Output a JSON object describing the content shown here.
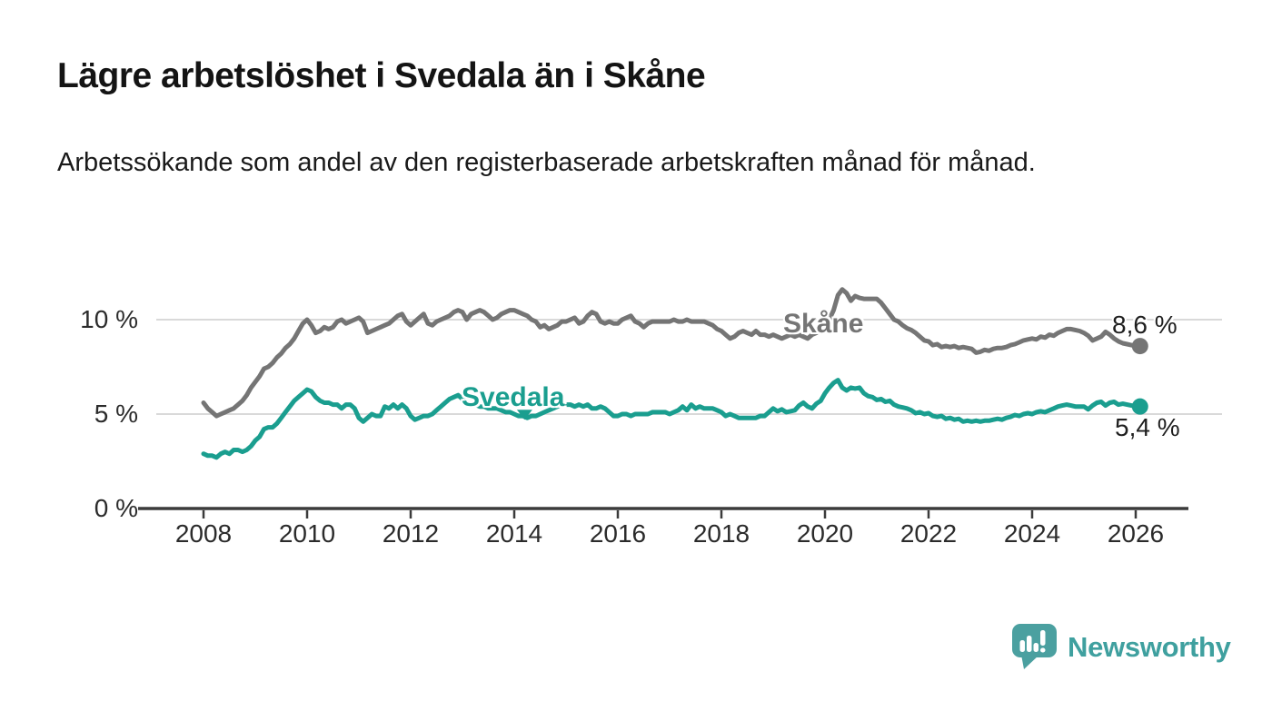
{
  "page": {
    "title": "Lägre arbetslöshet i Svedala än i Skåne",
    "subtitle": "Arbetssökande som andel av den registerbaserade arbetskraften månad för månad.",
    "background_color": "#FFFFFF"
  },
  "branding": {
    "label": "Newsworthy",
    "logo_icon": "speech-bubble-bar-chart",
    "logo_color": "#4BA0A0",
    "text_color": "#3FA09F"
  },
  "axis_style": {
    "grid_color": "#D9D9D9",
    "axis_color": "#3B3B3B",
    "tick_label_color": "#2B2B2B"
  },
  "chart_data": {
    "type": "line",
    "title": "Lägre arbetslöshet i Svedala än i Skåne",
    "xlabel": "",
    "ylabel": "",
    "x_unit": "month",
    "x_start": "2008-01",
    "x_end": "2026-02",
    "grid": "horizontal",
    "legend_position": "inline-labels",
    "ylim": [
      0,
      12.3
    ],
    "x_tick_years": [
      2008,
      2010,
      2012,
      2014,
      2016,
      2018,
      2020,
      2022,
      2024,
      2026
    ],
    "x_tick_labels": [
      "2008",
      "2010",
      "2012",
      "2014",
      "2016",
      "2018",
      "2020",
      "2022",
      "2024",
      "2026"
    ],
    "y_ticks": [
      {
        "value": 0,
        "label": "0 %"
      },
      {
        "value": 5,
        "label": "5 %"
      },
      {
        "value": 10,
        "label": "10 %"
      }
    ],
    "series": [
      {
        "name": "Skåne",
        "color": "#757575",
        "end_label": "8,6 %",
        "end_value": 8.6,
        "values": [
          5.6,
          5.3,
          5.1,
          4.9,
          5.0,
          5.1,
          5.2,
          5.3,
          5.5,
          5.7,
          6.0,
          6.4,
          6.7,
          7.0,
          7.4,
          7.5,
          7.7,
          8.0,
          8.2,
          8.5,
          8.7,
          9.0,
          9.4,
          9.8,
          10.0,
          9.7,
          9.3,
          9.4,
          9.6,
          9.5,
          9.6,
          9.9,
          10.0,
          9.8,
          9.9,
          10.0,
          10.1,
          9.9,
          9.3,
          9.4,
          9.5,
          9.6,
          9.7,
          9.8,
          10.0,
          10.2,
          10.3,
          9.9,
          9.7,
          9.9,
          10.1,
          10.3,
          9.8,
          9.7,
          9.9,
          10.0,
          10.1,
          10.2,
          10.4,
          10.5,
          10.4,
          10.0,
          10.3,
          10.4,
          10.5,
          10.4,
          10.2,
          10.0,
          10.1,
          10.3,
          10.4,
          10.5,
          10.5,
          10.4,
          10.3,
          10.2,
          10.0,
          9.9,
          9.6,
          9.7,
          9.5,
          9.6,
          9.7,
          9.9,
          9.9,
          10.0,
          10.1,
          9.8,
          9.9,
          10.2,
          10.4,
          10.3,
          9.9,
          9.8,
          9.9,
          9.8,
          9.8,
          10.0,
          10.1,
          10.2,
          9.9,
          9.8,
          9.6,
          9.8,
          9.9,
          9.9,
          9.9,
          9.9,
          9.9,
          10.0,
          9.9,
          9.9,
          10.0,
          9.9,
          9.9,
          9.9,
          9.9,
          9.8,
          9.7,
          9.5,
          9.4,
          9.2,
          9.0,
          9.1,
          9.3,
          9.4,
          9.3,
          9.2,
          9.4,
          9.2,
          9.2,
          9.1,
          9.2,
          9.1,
          9.0,
          9.1,
          9.2,
          9.1,
          9.2,
          9.1,
          9.0,
          9.2,
          9.3,
          9.5,
          9.7,
          10.0,
          10.5,
          11.3,
          11.6,
          11.4,
          11.0,
          11.25,
          11.15,
          11.1,
          11.1,
          11.1,
          11.1,
          10.9,
          10.6,
          10.3,
          10.0,
          9.9,
          9.7,
          9.55,
          9.45,
          9.3,
          9.1,
          8.9,
          8.85,
          8.65,
          8.7,
          8.55,
          8.6,
          8.55,
          8.6,
          8.5,
          8.55,
          8.5,
          8.45,
          8.25,
          8.3,
          8.4,
          8.35,
          8.45,
          8.5,
          8.5,
          8.55,
          8.65,
          8.7,
          8.8,
          8.9,
          8.95,
          9.0,
          8.95,
          9.1,
          9.05,
          9.2,
          9.15,
          9.3,
          9.4,
          9.5,
          9.5,
          9.45,
          9.4,
          9.3,
          9.15,
          8.9,
          9.0,
          9.1,
          9.35,
          9.2,
          9.0,
          8.85,
          8.75,
          8.7,
          8.65,
          8.6,
          8.6
        ]
      },
      {
        "name": "Svedala",
        "color": "#1A9E8F",
        "end_label": "5,4 %",
        "end_value": 5.4,
        "values": [
          2.9,
          2.8,
          2.8,
          2.7,
          2.9,
          3.0,
          2.9,
          3.1,
          3.1,
          3.0,
          3.1,
          3.3,
          3.6,
          3.8,
          4.2,
          4.3,
          4.3,
          4.5,
          4.8,
          5.1,
          5.4,
          5.7,
          5.9,
          6.1,
          6.3,
          6.2,
          5.9,
          5.7,
          5.6,
          5.6,
          5.5,
          5.5,
          5.3,
          5.5,
          5.5,
          5.3,
          4.8,
          4.6,
          4.8,
          5.0,
          4.9,
          4.9,
          5.4,
          5.3,
          5.5,
          5.3,
          5.5,
          5.3,
          4.9,
          4.7,
          4.8,
          4.9,
          4.9,
          5.0,
          5.2,
          5.4,
          5.6,
          5.8,
          5.9,
          6.0,
          5.8,
          5.6,
          5.5,
          5.5,
          5.4,
          5.4,
          5.3,
          5.3,
          5.3,
          5.2,
          5.1,
          5.1,
          5.0,
          4.9,
          4.9,
          4.8,
          4.9,
          4.9,
          5.0,
          5.1,
          5.2,
          5.3,
          5.4,
          5.5,
          5.5,
          5.5,
          5.4,
          5.5,
          5.4,
          5.5,
          5.3,
          5.3,
          5.4,
          5.3,
          5.1,
          4.9,
          4.9,
          5.0,
          5.0,
          4.9,
          5.0,
          5.0,
          5.0,
          5.0,
          5.1,
          5.1,
          5.1,
          5.1,
          5.0,
          5.1,
          5.2,
          5.4,
          5.2,
          5.5,
          5.3,
          5.4,
          5.3,
          5.3,
          5.3,
          5.2,
          5.1,
          4.9,
          5.0,
          4.9,
          4.8,
          4.8,
          4.8,
          4.8,
          4.8,
          4.9,
          4.9,
          5.1,
          5.3,
          5.15,
          5.25,
          5.1,
          5.15,
          5.2,
          5.45,
          5.6,
          5.4,
          5.3,
          5.55,
          5.7,
          6.1,
          6.4,
          6.65,
          6.8,
          6.4,
          6.25,
          6.4,
          6.35,
          6.4,
          6.1,
          5.95,
          5.9,
          5.75,
          5.8,
          5.65,
          5.7,
          5.5,
          5.4,
          5.35,
          5.3,
          5.2,
          5.05,
          5.1,
          5.0,
          5.05,
          4.9,
          4.85,
          4.9,
          4.75,
          4.8,
          4.7,
          4.75,
          4.6,
          4.65,
          4.6,
          4.65,
          4.6,
          4.65,
          4.65,
          4.7,
          4.75,
          4.7,
          4.8,
          4.85,
          4.95,
          4.9,
          5.0,
          5.05,
          5.0,
          5.1,
          5.15,
          5.1,
          5.2,
          5.3,
          5.4,
          5.45,
          5.5,
          5.45,
          5.4,
          5.4,
          5.4,
          5.25,
          5.45,
          5.6,
          5.65,
          5.45,
          5.6,
          5.65,
          5.5,
          5.55,
          5.5,
          5.45,
          5.4,
          5.4
        ]
      }
    ],
    "annotations": [
      {
        "type": "caret-down",
        "series": "Svedala",
        "x_year": 2014.2,
        "value": 4.7
      }
    ]
  }
}
